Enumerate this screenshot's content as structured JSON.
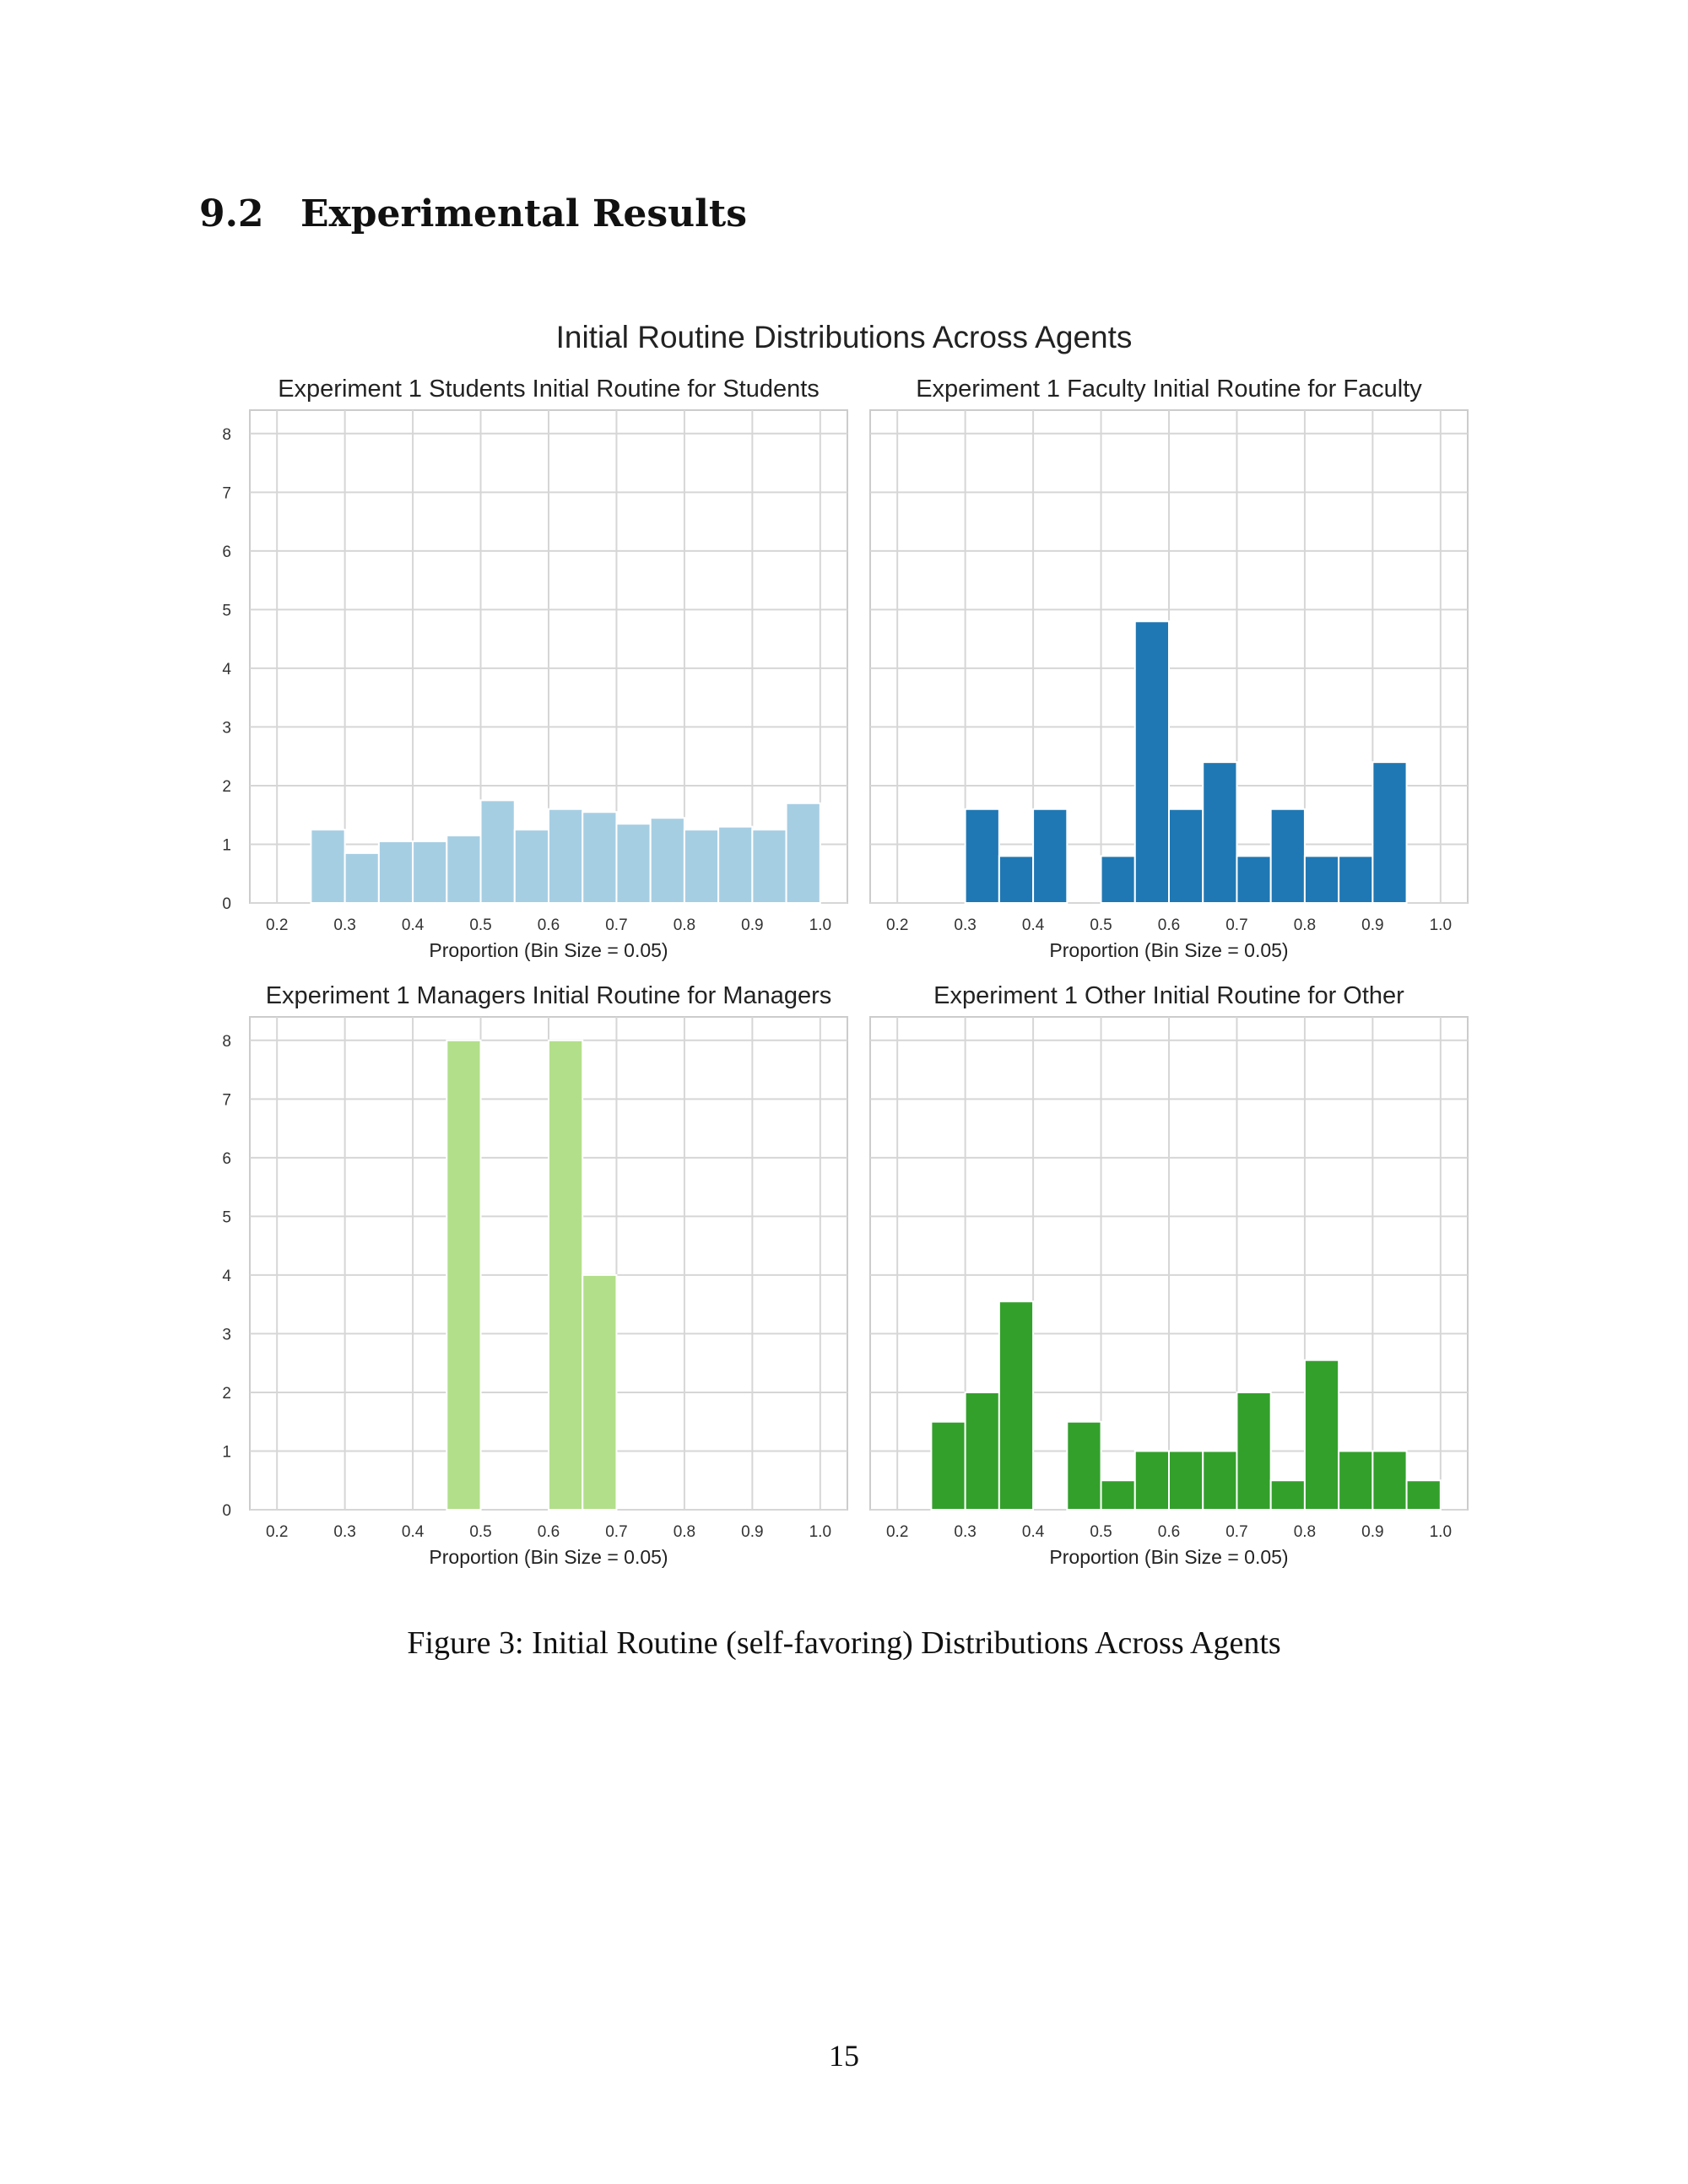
{
  "section": {
    "number": "9.2",
    "title": "Experimental Results"
  },
  "figure": {
    "suptitle": "Initial Routine Distributions Across Agents",
    "caption": "Figure 3: Initial Routine (self-favoring) Distributions Across Agents"
  },
  "page_number": "15",
  "chart_data": [
    {
      "type": "bar",
      "title": "Experiment 1 Students Initial Routine for Students",
      "xlabel": "Proportion (Bin Size = 0.05)",
      "ylabel": "",
      "xlim": [
        0.16,
        1.04
      ],
      "ylim": [
        0,
        8.4
      ],
      "xticks": [
        "0.2",
        "0.3",
        "0.4",
        "0.5",
        "0.6",
        "0.7",
        "0.8",
        "0.9",
        "1.0"
      ],
      "yticks": [
        "0",
        "1",
        "2",
        "3",
        "4",
        "5",
        "6",
        "7",
        "8"
      ],
      "show_yticks": true,
      "color": "#a6cee3",
      "bin_size": 0.05,
      "bins": [
        {
          "x0": 0.25,
          "value": 1.25
        },
        {
          "x0": 0.3,
          "value": 0.85
        },
        {
          "x0": 0.35,
          "value": 1.05
        },
        {
          "x0": 0.4,
          "value": 1.05
        },
        {
          "x0": 0.45,
          "value": 1.15
        },
        {
          "x0": 0.5,
          "value": 1.75
        },
        {
          "x0": 0.55,
          "value": 1.25
        },
        {
          "x0": 0.6,
          "value": 1.6
        },
        {
          "x0": 0.65,
          "value": 1.55
        },
        {
          "x0": 0.7,
          "value": 1.35
        },
        {
          "x0": 0.75,
          "value": 1.45
        },
        {
          "x0": 0.8,
          "value": 1.25
        },
        {
          "x0": 0.85,
          "value": 1.3
        },
        {
          "x0": 0.9,
          "value": 1.25
        },
        {
          "x0": 0.95,
          "value": 1.7
        }
      ]
    },
    {
      "type": "bar",
      "title": "Experiment 1 Faculty Initial Routine for Faculty",
      "xlabel": "Proportion (Bin Size = 0.05)",
      "ylabel": "",
      "xlim": [
        0.16,
        1.04
      ],
      "ylim": [
        0,
        8.4
      ],
      "xticks": [
        "0.2",
        "0.3",
        "0.4",
        "0.5",
        "0.6",
        "0.7",
        "0.8",
        "0.9",
        "1.0"
      ],
      "yticks": [
        "0",
        "1",
        "2",
        "3",
        "4",
        "5",
        "6",
        "7",
        "8"
      ],
      "show_yticks": false,
      "color": "#1f78b4",
      "bin_size": 0.05,
      "bins": [
        {
          "x0": 0.3,
          "value": 1.6
        },
        {
          "x0": 0.35,
          "value": 0.8
        },
        {
          "x0": 0.4,
          "value": 1.6
        },
        {
          "x0": 0.5,
          "value": 0.8
        },
        {
          "x0": 0.55,
          "value": 4.8
        },
        {
          "x0": 0.6,
          "value": 1.6
        },
        {
          "x0": 0.65,
          "value": 2.4
        },
        {
          "x0": 0.7,
          "value": 0.8
        },
        {
          "x0": 0.75,
          "value": 1.6
        },
        {
          "x0": 0.8,
          "value": 0.8
        },
        {
          "x0": 0.85,
          "value": 0.8
        },
        {
          "x0": 0.9,
          "value": 2.4
        }
      ]
    },
    {
      "type": "bar",
      "title": "Experiment 1 Managers Initial Routine for Managers",
      "xlabel": "Proportion (Bin Size = 0.05)",
      "ylabel": "",
      "xlim": [
        0.16,
        1.04
      ],
      "ylim": [
        0,
        8.4
      ],
      "xticks": [
        "0.2",
        "0.3",
        "0.4",
        "0.5",
        "0.6",
        "0.7",
        "0.8",
        "0.9",
        "1.0"
      ],
      "yticks": [
        "0",
        "1",
        "2",
        "3",
        "4",
        "5",
        "6",
        "7",
        "8"
      ],
      "show_yticks": true,
      "color": "#b2df8a",
      "bin_size": 0.05,
      "bins": [
        {
          "x0": 0.45,
          "value": 8.0
        },
        {
          "x0": 0.6,
          "value": 8.0
        },
        {
          "x0": 0.65,
          "value": 4.0
        }
      ]
    },
    {
      "type": "bar",
      "title": "Experiment 1 Other Initial Routine for Other",
      "xlabel": "Proportion (Bin Size = 0.05)",
      "ylabel": "",
      "xlim": [
        0.16,
        1.04
      ],
      "ylim": [
        0,
        8.4
      ],
      "xticks": [
        "0.2",
        "0.3",
        "0.4",
        "0.5",
        "0.6",
        "0.7",
        "0.8",
        "0.9",
        "1.0"
      ],
      "yticks": [
        "0",
        "1",
        "2",
        "3",
        "4",
        "5",
        "6",
        "7",
        "8"
      ],
      "show_yticks": false,
      "color": "#33a02c",
      "bin_size": 0.05,
      "bins": [
        {
          "x0": 0.25,
          "value": 1.5
        },
        {
          "x0": 0.3,
          "value": 2.0
        },
        {
          "x0": 0.35,
          "value": 3.55
        },
        {
          "x0": 0.45,
          "value": 1.5
        },
        {
          "x0": 0.5,
          "value": 0.5
        },
        {
          "x0": 0.55,
          "value": 1.0
        },
        {
          "x0": 0.6,
          "value": 1.0
        },
        {
          "x0": 0.65,
          "value": 1.0
        },
        {
          "x0": 0.7,
          "value": 2.0
        },
        {
          "x0": 0.75,
          "value": 0.5
        },
        {
          "x0": 0.8,
          "value": 2.55
        },
        {
          "x0": 0.85,
          "value": 1.0
        },
        {
          "x0": 0.9,
          "value": 1.0
        },
        {
          "x0": 0.95,
          "value": 0.5
        }
      ]
    }
  ]
}
